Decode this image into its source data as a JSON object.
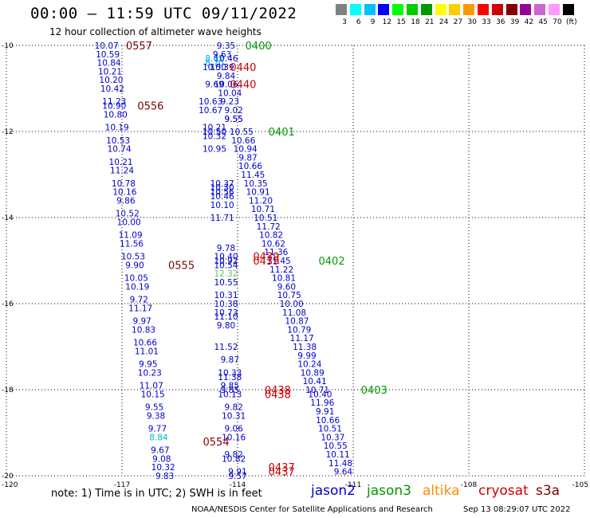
{
  "title": "00:00 – 11:59 UTC 09/11/2022",
  "subtitle": "12 hour collection of altimeter wave heights",
  "colorbar": {
    "labels": [
      "3",
      "6",
      "9",
      "12",
      "15",
      "18",
      "21",
      "24",
      "27",
      "30",
      "33",
      "36",
      "39",
      "42",
      "45",
      "70",
      "(ft)"
    ],
    "colors": [
      "#808080",
      "#00ffff",
      "#00c0ff",
      "#0000ff",
      "#00ff00",
      "#00cc00",
      "#009900",
      "#ffff00",
      "#ffcc00",
      "#ff9900",
      "#ff0000",
      "#cc0000",
      "#800000",
      "#990099",
      "#cc66cc",
      "#ff99ff",
      "#000000"
    ]
  },
  "axes": {
    "lon_ticks": [
      {
        "lon": -120,
        "label": "-120"
      },
      {
        "lon": -117,
        "label": "-117"
      },
      {
        "lon": -114,
        "label": "-114"
      },
      {
        "lon": -111,
        "label": "-111"
      },
      {
        "lon": -108,
        "label": "-108"
      },
      {
        "lon": -105,
        "label": "-105"
      }
    ],
    "lat_ticks": [
      {
        "lat": -10,
        "label": "-10"
      },
      {
        "lat": -12,
        "label": "-12"
      },
      {
        "lat": -14,
        "label": "-14"
      },
      {
        "lat": -16,
        "label": "-16"
      },
      {
        "lat": -18,
        "label": "-18"
      },
      {
        "lat": -20,
        "label": "-20"
      }
    ],
    "lon_range": [
      -120,
      -105
    ],
    "lat_range": [
      -10,
      -20
    ],
    "grid": "dotted"
  },
  "satellites": {
    "jason2": "#0000cc",
    "jason3": "#009900",
    "altika": "#ff8c00",
    "cryosat": "#cc0000",
    "s3a": "#800000"
  },
  "passes": [
    {
      "time": "0557",
      "sat": "s3a",
      "lon": -116.9,
      "lat": -10.0
    },
    {
      "time": "0556",
      "sat": "s3a",
      "lon": -116.6,
      "lat": -11.4
    },
    {
      "time": "0555",
      "sat": "s3a",
      "lon": -115.8,
      "lat": -15.1
    },
    {
      "time": "0554",
      "sat": "s3a",
      "lon": -114.9,
      "lat": -19.2
    },
    {
      "time": "0400",
      "sat": "jason3",
      "lon": -113.8,
      "lat": -10.0
    },
    {
      "time": "0401",
      "sat": "jason3",
      "lon": -113.2,
      "lat": -12.0
    },
    {
      "time": "0402",
      "sat": "jason3",
      "lon": -111.9,
      "lat": -15.0
    },
    {
      "time": "0403",
      "sat": "jason3",
      "lon": -110.8,
      "lat": -18.0
    },
    {
      "time": "0440",
      "sat": "cryosat",
      "lon": -114.2,
      "lat": -10.5
    },
    {
      "time": "0440",
      "sat": "cryosat",
      "lon": -114.2,
      "lat": -10.9
    },
    {
      "time": "0439",
      "sat": "cryosat",
      "lon": -113.6,
      "lat": -14.9
    },
    {
      "time": "0439",
      "sat": "cryosat",
      "lon": -113.6,
      "lat": -15.0
    },
    {
      "time": "0438",
      "sat": "cryosat",
      "lon": -113.3,
      "lat": -18.0
    },
    {
      "time": "0438",
      "sat": "cryosat",
      "lon": -113.3,
      "lat": -18.1
    },
    {
      "time": "0437",
      "sat": "cryosat",
      "lon": -113.2,
      "lat": -19.8
    },
    {
      "time": "0437",
      "sat": "cryosat",
      "lon": -113.2,
      "lat": -19.9
    }
  ],
  "tracks": [
    {
      "sat": "s3a",
      "points": [
        {
          "lat": -10.0,
          "lon": -117.4,
          "v": "10.07"
        },
        {
          "lat": -10.2,
          "lon": -117.37,
          "v": "10.59"
        },
        {
          "lat": -10.4,
          "lon": -117.34,
          "v": "10.84"
        },
        {
          "lat": -10.6,
          "lon": -117.31,
          "v": "10.21"
        },
        {
          "lat": -10.8,
          "lon": -117.28,
          "v": "10.20"
        },
        {
          "lat": -11.0,
          "lon": -117.25,
          "v": "10.42"
        },
        {
          "lat": -11.3,
          "lon": -117.2,
          "v": "11.23"
        },
        {
          "lat": -11.4,
          "lon": -117.2,
          "v": "10.90"
        },
        {
          "lat": -11.6,
          "lon": -117.17,
          "v": "10.80"
        },
        {
          "lat": -11.9,
          "lon": -117.13,
          "v": "10.19"
        },
        {
          "lat": -12.2,
          "lon": -117.1,
          "v": "10.53"
        },
        {
          "lat": -12.4,
          "lon": -117.07,
          "v": "10.74"
        },
        {
          "lat": -12.7,
          "lon": -117.03,
          "v": "10.21"
        },
        {
          "lat": -12.9,
          "lon": -117.0,
          "v": "11.24"
        },
        {
          "lat": -13.2,
          "lon": -116.96,
          "v": "10.78"
        },
        {
          "lat": -13.4,
          "lon": -116.93,
          "v": "10.16"
        },
        {
          "lat": -13.6,
          "lon": -116.9,
          "v": "9.86"
        },
        {
          "lat": -13.9,
          "lon": -116.86,
          "v": "10.52"
        },
        {
          "lat": -14.1,
          "lon": -116.82,
          "v": "10.00"
        },
        {
          "lat": -14.4,
          "lon": -116.78,
          "v": "11.09"
        },
        {
          "lat": -14.6,
          "lon": -116.75,
          "v": "11.56"
        },
        {
          "lat": -14.9,
          "lon": -116.71,
          "v": "10.53"
        },
        {
          "lat": -15.1,
          "lon": -116.67,
          "v": "9.90"
        },
        {
          "lat": -15.4,
          "lon": -116.63,
          "v": "10.05"
        },
        {
          "lat": -15.6,
          "lon": -116.6,
          "v": "10.19"
        },
        {
          "lat": -15.9,
          "lon": -116.56,
          "v": "9.72"
        },
        {
          "lat": -16.1,
          "lon": -116.52,
          "v": "11.17"
        },
        {
          "lat": -16.4,
          "lon": -116.48,
          "v": "9.97"
        },
        {
          "lat": -16.6,
          "lon": -116.44,
          "v": "10.83"
        },
        {
          "lat": -16.9,
          "lon": -116.4,
          "v": "10.66"
        },
        {
          "lat": -17.1,
          "lon": -116.36,
          "v": "11.01"
        },
        {
          "lat": -17.4,
          "lon": -116.32,
          "v": "9.95"
        },
        {
          "lat": -17.6,
          "lon": -116.28,
          "v": "10.23"
        },
        {
          "lat": -17.9,
          "lon": -116.24,
          "v": "11.07"
        },
        {
          "lat": -18.1,
          "lon": -116.2,
          "v": "10.15"
        },
        {
          "lat": -18.4,
          "lon": -116.16,
          "v": "9.55"
        },
        {
          "lat": -18.6,
          "lon": -116.12,
          "v": "9.38"
        },
        {
          "lat": -18.9,
          "lon": -116.08,
          "v": "9.77"
        },
        {
          "lat": -19.1,
          "lon": -116.05,
          "v": "8.84",
          "c": "#00bbbb"
        },
        {
          "lat": -19.4,
          "lon": -116.01,
          "v": "9.67"
        },
        {
          "lat": -19.6,
          "lon": -115.97,
          "v": "9.08"
        },
        {
          "lat": -19.8,
          "lon": -115.93,
          "v": "10.32"
        },
        {
          "lat": -20.0,
          "lon": -115.89,
          "v": "9.83"
        }
      ]
    },
    {
      "sat": "cryosat",
      "points": [
        {
          "lat": -10.0,
          "lon": -114.3,
          "v": "9.35"
        },
        {
          "lat": -10.2,
          "lon": -114.4,
          "v": "9.63"
        },
        {
          "lat": -10.3,
          "lon": -114.6,
          "v": "8.67",
          "c": "#00aaff"
        },
        {
          "lat": -10.3,
          "lon": -114.3,
          "v": "10.46"
        },
        {
          "lat": -10.4,
          "lon": -114.6,
          "v": "8.70",
          "c": "#00aaff"
        },
        {
          "lat": -10.5,
          "lon": -114.6,
          "v": "10.50"
        },
        {
          "lat": -10.5,
          "lon": -114.4,
          "v": "10.39"
        },
        {
          "lat": -10.7,
          "lon": -114.3,
          "v": "9.84"
        },
        {
          "lat": -10.9,
          "lon": -114.6,
          "v": "9.69"
        },
        {
          "lat": -10.9,
          "lon": -114.3,
          "v": "10.06"
        },
        {
          "lat": -11.1,
          "lon": -114.2,
          "v": "10.04"
        },
        {
          "lat": -11.3,
          "lon": -114.7,
          "v": "10.63"
        },
        {
          "lat": -11.3,
          "lon": -114.2,
          "v": "9.23"
        },
        {
          "lat": -11.5,
          "lon": -114.7,
          "v": "10.67"
        },
        {
          "lat": -11.5,
          "lon": -114.1,
          "v": "9.02"
        },
        {
          "lat": -11.7,
          "lon": -114.1,
          "v": "9.55"
        },
        {
          "lat": -11.9,
          "lon": -114.6,
          "v": "10.21"
        },
        {
          "lat": -12.0,
          "lon": -114.6,
          "v": "10.50"
        },
        {
          "lat": -12.1,
          "lon": -114.6,
          "v": "10.32"
        },
        {
          "lat": -12.4,
          "lon": -114.6,
          "v": "10.95"
        },
        {
          "lat": -13.2,
          "lon": -114.4,
          "v": "10.37"
        },
        {
          "lat": -13.3,
          "lon": -114.4,
          "v": "10.30"
        },
        {
          "lat": -13.4,
          "lon": -114.4,
          "v": "10.56"
        },
        {
          "lat": -13.5,
          "lon": -114.4,
          "v": "10.46"
        },
        {
          "lat": -13.7,
          "lon": -114.4,
          "v": "10.10"
        },
        {
          "lat": -14.0,
          "lon": -114.4,
          "v": "11.71"
        },
        {
          "lat": -14.7,
          "lon": -114.3,
          "v": "9.78"
        },
        {
          "lat": -14.9,
          "lon": -114.3,
          "v": "10.40"
        },
        {
          "lat": -15.0,
          "lon": -114.3,
          "v": "10.92"
        },
        {
          "lat": -15.1,
          "lon": -114.3,
          "v": "10.54"
        },
        {
          "lat": -15.3,
          "lon": -114.3,
          "v": "12.32",
          "c": "#55cc55"
        },
        {
          "lat": -15.5,
          "lon": -114.3,
          "v": "10.55"
        },
        {
          "lat": -15.8,
          "lon": -114.3,
          "v": "10.31"
        },
        {
          "lat": -16.0,
          "lon": -114.3,
          "v": "10.38"
        },
        {
          "lat": -16.2,
          "lon": -114.3,
          "v": "10.73"
        },
        {
          "lat": -16.3,
          "lon": -114.3,
          "v": "11.10"
        },
        {
          "lat": -16.5,
          "lon": -114.3,
          "v": "9.80"
        },
        {
          "lat": -17.0,
          "lon": -114.3,
          "v": "11.52"
        },
        {
          "lat": -17.3,
          "lon": -114.2,
          "v": "9.87"
        },
        {
          "lat": -17.6,
          "lon": -114.2,
          "v": "10.33"
        },
        {
          "lat": -17.7,
          "lon": -114.2,
          "v": "11.38"
        },
        {
          "lat": -17.9,
          "lon": -114.2,
          "v": "9.85"
        },
        {
          "lat": -18.0,
          "lon": -114.2,
          "v": "9.85"
        },
        {
          "lat": -18.1,
          "lon": -114.2,
          "v": "10.13"
        },
        {
          "lat": -18.4,
          "lon": -114.1,
          "v": "9.82"
        },
        {
          "lat": -18.6,
          "lon": -114.1,
          "v": "10.31"
        },
        {
          "lat": -18.9,
          "lon": -114.1,
          "v": "9.06"
        },
        {
          "lat": -19.1,
          "lon": -114.1,
          "v": "10.16"
        },
        {
          "lat": -19.5,
          "lon": -114.1,
          "v": "9.82"
        },
        {
          "lat": -19.6,
          "lon": -114.1,
          "v": "10.82"
        },
        {
          "lat": -19.9,
          "lon": -114.0,
          "v": "9.91"
        },
        {
          "lat": -20.0,
          "lon": -114.0,
          "v": "9.57"
        }
      ]
    },
    {
      "sat": "jason3",
      "points": [
        {
          "lat": -11.7,
          "lon": -114.1,
          "v": "9.55"
        },
        {
          "lat": -12.0,
          "lon": -113.9,
          "v": "10.55"
        },
        {
          "lat": -12.2,
          "lon": -113.85,
          "v": "10.66"
        },
        {
          "lat": -12.4,
          "lon": -113.8,
          "v": "10.94"
        },
        {
          "lat": -12.6,
          "lon": -113.73,
          "v": "9.87"
        },
        {
          "lat": -12.8,
          "lon": -113.67,
          "v": "10.66"
        },
        {
          "lat": -13.0,
          "lon": -113.6,
          "v": "11.45"
        },
        {
          "lat": -13.2,
          "lon": -113.53,
          "v": "10.35"
        },
        {
          "lat": -13.4,
          "lon": -113.47,
          "v": "10.91"
        },
        {
          "lat": -13.6,
          "lon": -113.4,
          "v": "11.20"
        },
        {
          "lat": -13.8,
          "lon": -113.34,
          "v": "10.71"
        },
        {
          "lat": -14.0,
          "lon": -113.27,
          "v": "10.51"
        },
        {
          "lat": -14.2,
          "lon": -113.2,
          "v": "11.72"
        },
        {
          "lat": -14.4,
          "lon": -113.13,
          "v": "10.82"
        },
        {
          "lat": -14.6,
          "lon": -113.07,
          "v": "10.62"
        },
        {
          "lat": -14.8,
          "lon": -113.0,
          "v": "11.36"
        },
        {
          "lat": -15.0,
          "lon": -112.93,
          "v": "11.45"
        },
        {
          "lat": -15.2,
          "lon": -112.86,
          "v": "11.22"
        },
        {
          "lat": -15.4,
          "lon": -112.8,
          "v": "10.81"
        },
        {
          "lat": -15.6,
          "lon": -112.73,
          "v": "9.60"
        },
        {
          "lat": -15.8,
          "lon": -112.66,
          "v": "10.75"
        },
        {
          "lat": -16.0,
          "lon": -112.6,
          "v": "10.00"
        },
        {
          "lat": -16.2,
          "lon": -112.53,
          "v": "11.08"
        },
        {
          "lat": -16.4,
          "lon": -112.46,
          "v": "10.87"
        },
        {
          "lat": -16.6,
          "lon": -112.4,
          "v": "10.79"
        },
        {
          "lat": -16.8,
          "lon": -112.33,
          "v": "11.17"
        },
        {
          "lat": -17.0,
          "lon": -112.26,
          "v": "11.38"
        },
        {
          "lat": -17.2,
          "lon": -112.2,
          "v": "9.99"
        },
        {
          "lat": -17.4,
          "lon": -112.13,
          "v": "10.24"
        },
        {
          "lat": -17.6,
          "lon": -112.06,
          "v": "10.89"
        },
        {
          "lat": -17.8,
          "lon": -112.0,
          "v": "10.41"
        },
        {
          "lat": -18.0,
          "lon": -111.93,
          "v": "10.71"
        },
        {
          "lat": -18.1,
          "lon": -111.86,
          "v": "10.40"
        },
        {
          "lat": -18.3,
          "lon": -111.8,
          "v": "11.96"
        },
        {
          "lat": -18.5,
          "lon": -111.73,
          "v": "9.91"
        },
        {
          "lat": -18.7,
          "lon": -111.66,
          "v": "10.66"
        },
        {
          "lat": -18.9,
          "lon": -111.6,
          "v": "10.51"
        },
        {
          "lat": -19.1,
          "lon": -111.53,
          "v": "10.37"
        },
        {
          "lat": -19.3,
          "lon": -111.46,
          "v": "10.55"
        },
        {
          "lat": -19.5,
          "lon": -111.4,
          "v": "10.11"
        },
        {
          "lat": -19.7,
          "lon": -111.33,
          "v": "11.48"
        },
        {
          "lat": -19.9,
          "lon": -111.26,
          "v": "9.64"
        }
      ]
    }
  ],
  "legend": [
    {
      "name": "jason2",
      "color": "#0000cc"
    },
    {
      "name": "jason3",
      "color": "#009900"
    },
    {
      "name": "altika",
      "color": "#ff8c00"
    },
    {
      "name": "cryosat",
      "color": "#cc0000"
    },
    {
      "name": "s3a",
      "color": "#800000"
    }
  ],
  "note": "note:  1) Time is in UTC;  2) SWH is in feet",
  "credit": "NOAA/NESDIS Center for Satellite Applications and Research",
  "timestamp": "Sep 13 08:29:07 UTC 2022"
}
